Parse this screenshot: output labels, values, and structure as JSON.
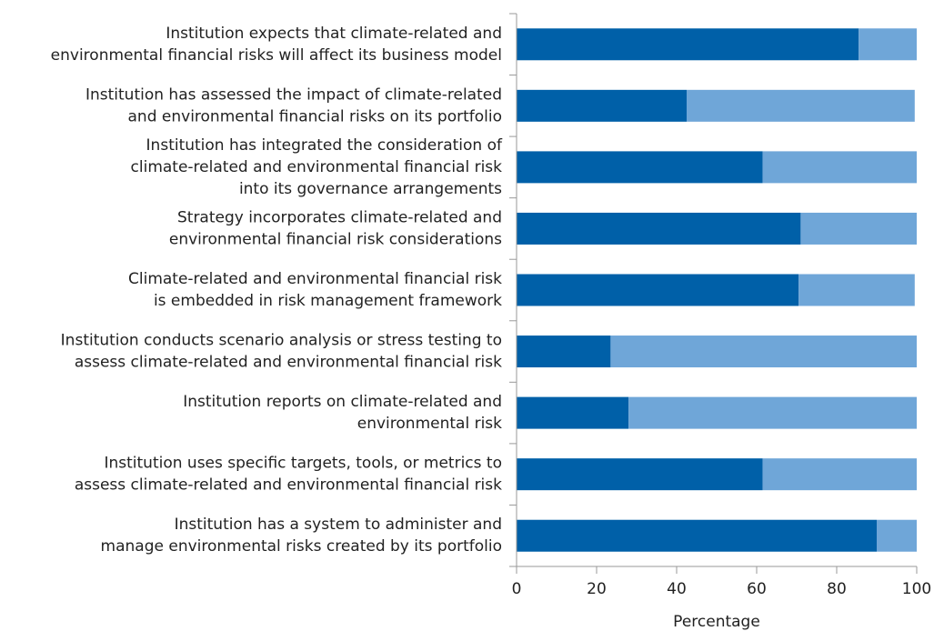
{
  "chart_data": {
    "type": "stacked_barh",
    "categories": [
      [
        "Institution expects that climate-related and",
        "environmental financial risks will affect its business model"
      ],
      [
        "Institution has assessed the impact of climate-related",
        "and environmental financial risks on its portfolio"
      ],
      [
        "Institution has integrated the consideration of",
        "climate-related and environmental financial risk",
        "into its governance arrangements"
      ],
      [
        "Strategy incorporates climate-related and",
        "environmental financial risk considerations"
      ],
      [
        "Climate-related and environmental financial risk",
        "is embedded in risk management framework"
      ],
      [
        "Institution conducts scenario analysis or stress testing to",
        "assess climate-related and environmental financial risk"
      ],
      [
        "Institution reports on climate-related and",
        "environmental risk"
      ],
      [
        "Institution uses specific targets, tools, or metrics to",
        "assess climate-related and environmental financial risk"
      ],
      [
        "Institution has a system to administer and",
        "manage environmental risks created by its portfolio"
      ]
    ],
    "series": [
      {
        "color": "#0060a8",
        "values": [
          85.5,
          42.5,
          61.5,
          71,
          70.5,
          23.5,
          28,
          61.5,
          90
        ]
      },
      {
        "color": "#6fa6d8",
        "values": [
          14.5,
          57,
          38.5,
          29,
          29,
          76.5,
          72,
          38.5,
          10
        ]
      }
    ],
    "xlabel": "Percentage",
    "xlim": [
      0,
      100
    ],
    "xticks": [
      0,
      20,
      40,
      60,
      80,
      100
    ]
  }
}
